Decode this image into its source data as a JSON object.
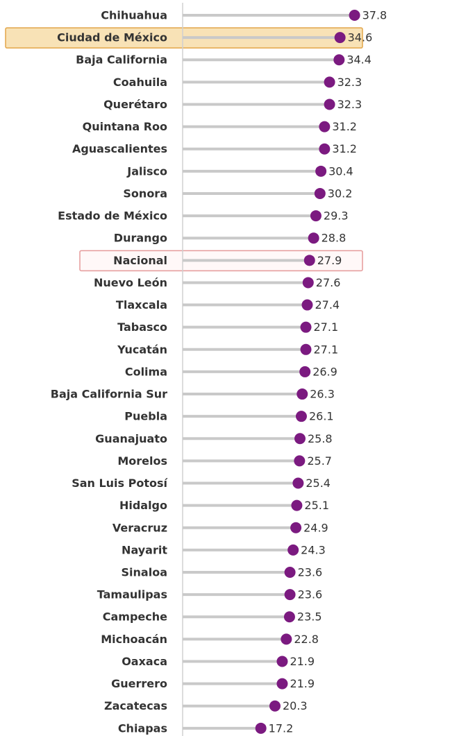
{
  "chart_data": {
    "type": "lollipop",
    "categories": [
      "Chihuahua",
      "Ciudad de México",
      "Baja California",
      "Coahuila",
      "Querétaro",
      "Quintana Roo",
      "Aguascalientes",
      "Jalisco",
      "Sonora",
      "Estado de México",
      "Durango",
      "Nacional",
      "Nuevo León",
      "Tlaxcala",
      "Tabasco",
      "Yucatán",
      "Colima",
      "Baja California Sur",
      "Puebla",
      "Guanajuato",
      "Morelos",
      "San Luis Potosí",
      "Hidalgo",
      "Veracruz",
      "Nayarit",
      "Sinaloa",
      "Tamaulipas",
      "Campeche",
      "Michoacán",
      "Oaxaca",
      "Guerrero",
      "Zacatecas",
      "Chiapas"
    ],
    "values": [
      37.8,
      34.6,
      34.4,
      32.3,
      32.3,
      31.2,
      31.2,
      30.4,
      30.2,
      29.3,
      28.8,
      27.9,
      27.6,
      27.4,
      27.1,
      27.1,
      26.9,
      26.3,
      26.1,
      25.8,
      25.7,
      25.4,
      25.1,
      24.9,
      24.3,
      23.6,
      23.6,
      23.5,
      22.8,
      21.9,
      21.9,
      20.3,
      17.2
    ],
    "color": "#7b1a80",
    "stem_color": "#c9c9c9",
    "xlim": [
      0,
      60
    ],
    "highlighted": [
      {
        "category": "Ciudad de México",
        "fill": "#f8e2b6",
        "stroke": "#e2a548"
      },
      {
        "category": "Nacional",
        "fill": "#fff8f8",
        "stroke": "#e59a9a"
      }
    ]
  }
}
